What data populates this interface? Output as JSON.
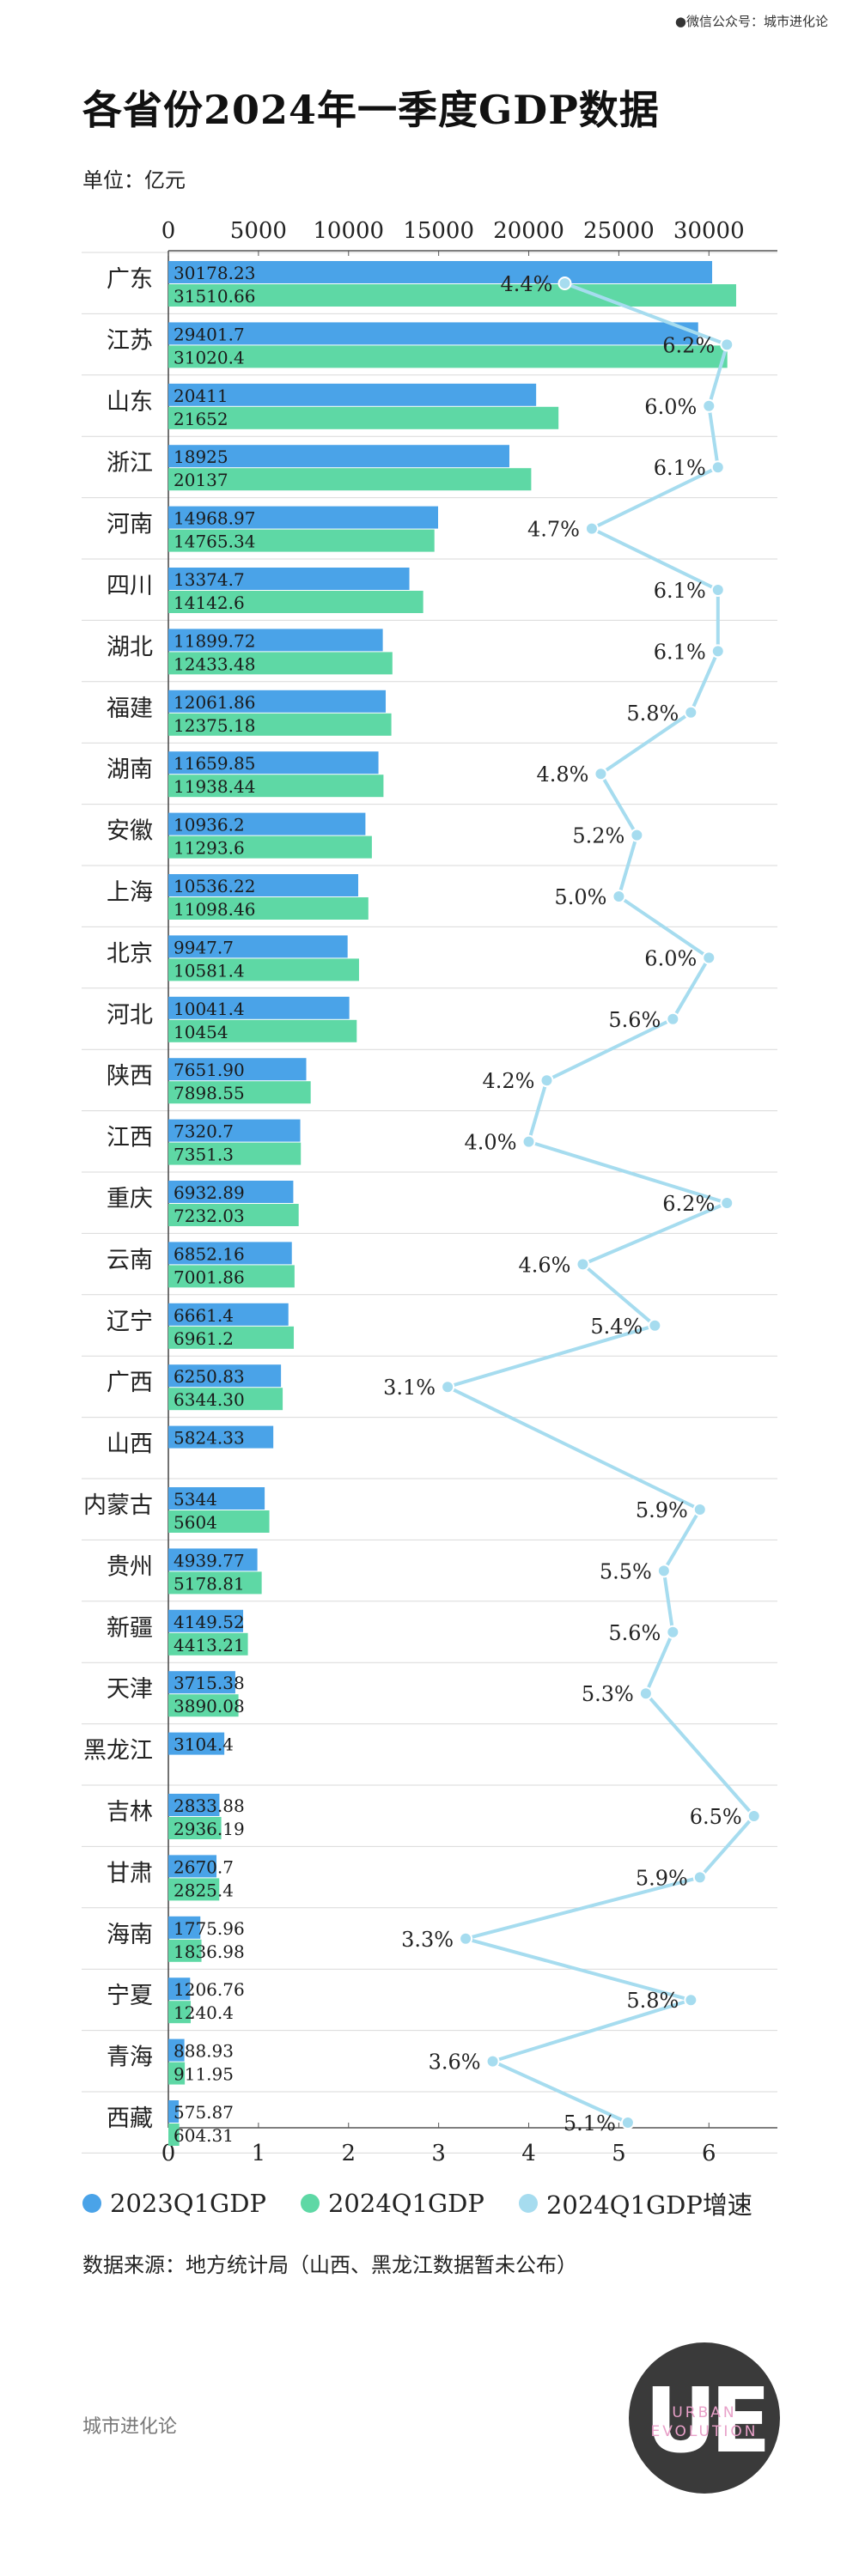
{
  "credit": "●微信公众号：城市进化论",
  "title": "各省份2024年一季度GDP数据",
  "unit": "单位：亿元",
  "legend": {
    "gdp2023": "2023Q1GDP",
    "gdp2024": "2024Q1GDP",
    "growth": "2024Q1GDP增速"
  },
  "colors": {
    "gdp2023": "#4aa3e8",
    "gdp2024": "#5ed8a5",
    "growth": "#a6dcef"
  },
  "source": "数据来源：地方统计局（山西、黑龙江数据暂未公布）",
  "footer": "城市进化论",
  "logo": {
    "letters": "UE",
    "line1": "URBAN",
    "line2": "EVOLUTION"
  },
  "chart_data": {
    "type": "bar",
    "orientation": "horizontal",
    "categories": [
      "广东",
      "江苏",
      "山东",
      "浙江",
      "河南",
      "四川",
      "湖北",
      "福建",
      "湖南",
      "安徽",
      "上海",
      "北京",
      "河北",
      "陕西",
      "江西",
      "重庆",
      "云南",
      "辽宁",
      "广西",
      "山西",
      "内蒙古",
      "贵州",
      "新疆",
      "天津",
      "黑龙江",
      "吉林",
      "甘肃",
      "海南",
      "宁夏",
      "青海",
      "西藏"
    ],
    "series": [
      {
        "name": "2023Q1GDP",
        "axis": "top",
        "values": [
          30178.23,
          29401.7,
          20411,
          18925,
          14968.97,
          13374.7,
          11899.72,
          12061.86,
          11659.85,
          10936.2,
          10536.22,
          9947.7,
          10041.4,
          7651.9,
          7320.7,
          6932.89,
          6852.16,
          6661.4,
          6250.83,
          5824.33,
          5344,
          4939.77,
          4149.52,
          3715.38,
          3104.4,
          2833.88,
          2670.7,
          1775.96,
          1206.76,
          888.93,
          575.87
        ],
        "labels": [
          "30178.23",
          "29401.7",
          "20411",
          "18925",
          "14968.97",
          "13374.7",
          "11899.72",
          "12061.86",
          "11659.85",
          "10936.2",
          "10536.22",
          "9947.7",
          "10041.4",
          "7651.90",
          "7320.7",
          "6932.89",
          "6852.16",
          "6661.4",
          "6250.83",
          "5824.33",
          "5344",
          "4939.77",
          "4149.52",
          "3715.38",
          "3104.4",
          "2833.88",
          "2670.7",
          "1775.96",
          "1206.76",
          "888.93",
          "575.87"
        ]
      },
      {
        "name": "2024Q1GDP",
        "axis": "top",
        "values": [
          31510.66,
          31020.4,
          21652,
          20137,
          14765.34,
          14142.6,
          12433.48,
          12375.18,
          11938.44,
          11293.6,
          11098.46,
          10581.4,
          10454,
          7898.55,
          7351.3,
          7232.03,
          7001.86,
          6961.2,
          6344.3,
          null,
          5604,
          5178.81,
          4413.21,
          3890.08,
          null,
          2936.19,
          2825.4,
          1836.98,
          1240.4,
          911.95,
          604.31
        ],
        "labels": [
          "31510.66",
          "31020.4",
          "21652",
          "20137",
          "14765.34",
          "14142.6",
          "12433.48",
          "12375.18",
          "11938.44",
          "11293.6",
          "11098.46",
          "10581.4",
          "10454",
          "7898.55",
          "7351.3",
          "7232.03",
          "7001.86",
          "6961.2",
          "6344.30",
          "",
          "5604",
          "5178.81",
          "4413.21",
          "3890.08",
          "",
          "2936.19",
          "2825.4",
          "1836.98",
          "1240.4",
          "911.95",
          "604.31"
        ]
      },
      {
        "name": "2024Q1GDP增速",
        "type": "line",
        "axis": "bottom",
        "values": [
          4.4,
          6.2,
          6.0,
          6.1,
          4.7,
          6.1,
          6.1,
          5.8,
          4.8,
          5.2,
          5.0,
          6.0,
          5.6,
          4.2,
          4.0,
          6.2,
          4.6,
          5.4,
          3.1,
          null,
          5.9,
          5.5,
          5.6,
          5.3,
          null,
          6.5,
          5.9,
          3.3,
          5.8,
          3.6,
          5.1
        ],
        "labels": [
          "4.4%",
          "6.2%",
          "6.0%",
          "6.1%",
          "4.7%",
          "6.1%",
          "6.1%",
          "5.8%",
          "4.8%",
          "5.2%",
          "5.0%",
          "6.0%",
          "5.6%",
          "4.2%",
          "4.0%",
          "6.2%",
          "4.6%",
          "5.4%",
          "3.1%",
          "",
          "5.9%",
          "5.5%",
          "5.6%",
          "5.3%",
          "",
          "6.5%",
          "5.9%",
          "3.3%",
          "5.8%",
          "3.6%",
          "5.1%"
        ]
      }
    ],
    "top_axis": {
      "ticks": [
        "0",
        "5000",
        "10000",
        "15000",
        "20000",
        "25000",
        "30000"
      ],
      "tick_values": [
        0,
        5000,
        10000,
        15000,
        20000,
        25000,
        30000
      ],
      "range": [
        0,
        33800
      ]
    },
    "bottom_axis": {
      "ticks": [
        "0",
        "1",
        "2",
        "3",
        "4",
        "5",
        "6"
      ],
      "tick_values": [
        0,
        1,
        2,
        3,
        4,
        5,
        6
      ],
      "range": [
        0,
        6.76
      ]
    },
    "grid": true,
    "legend_position": "bottom"
  }
}
